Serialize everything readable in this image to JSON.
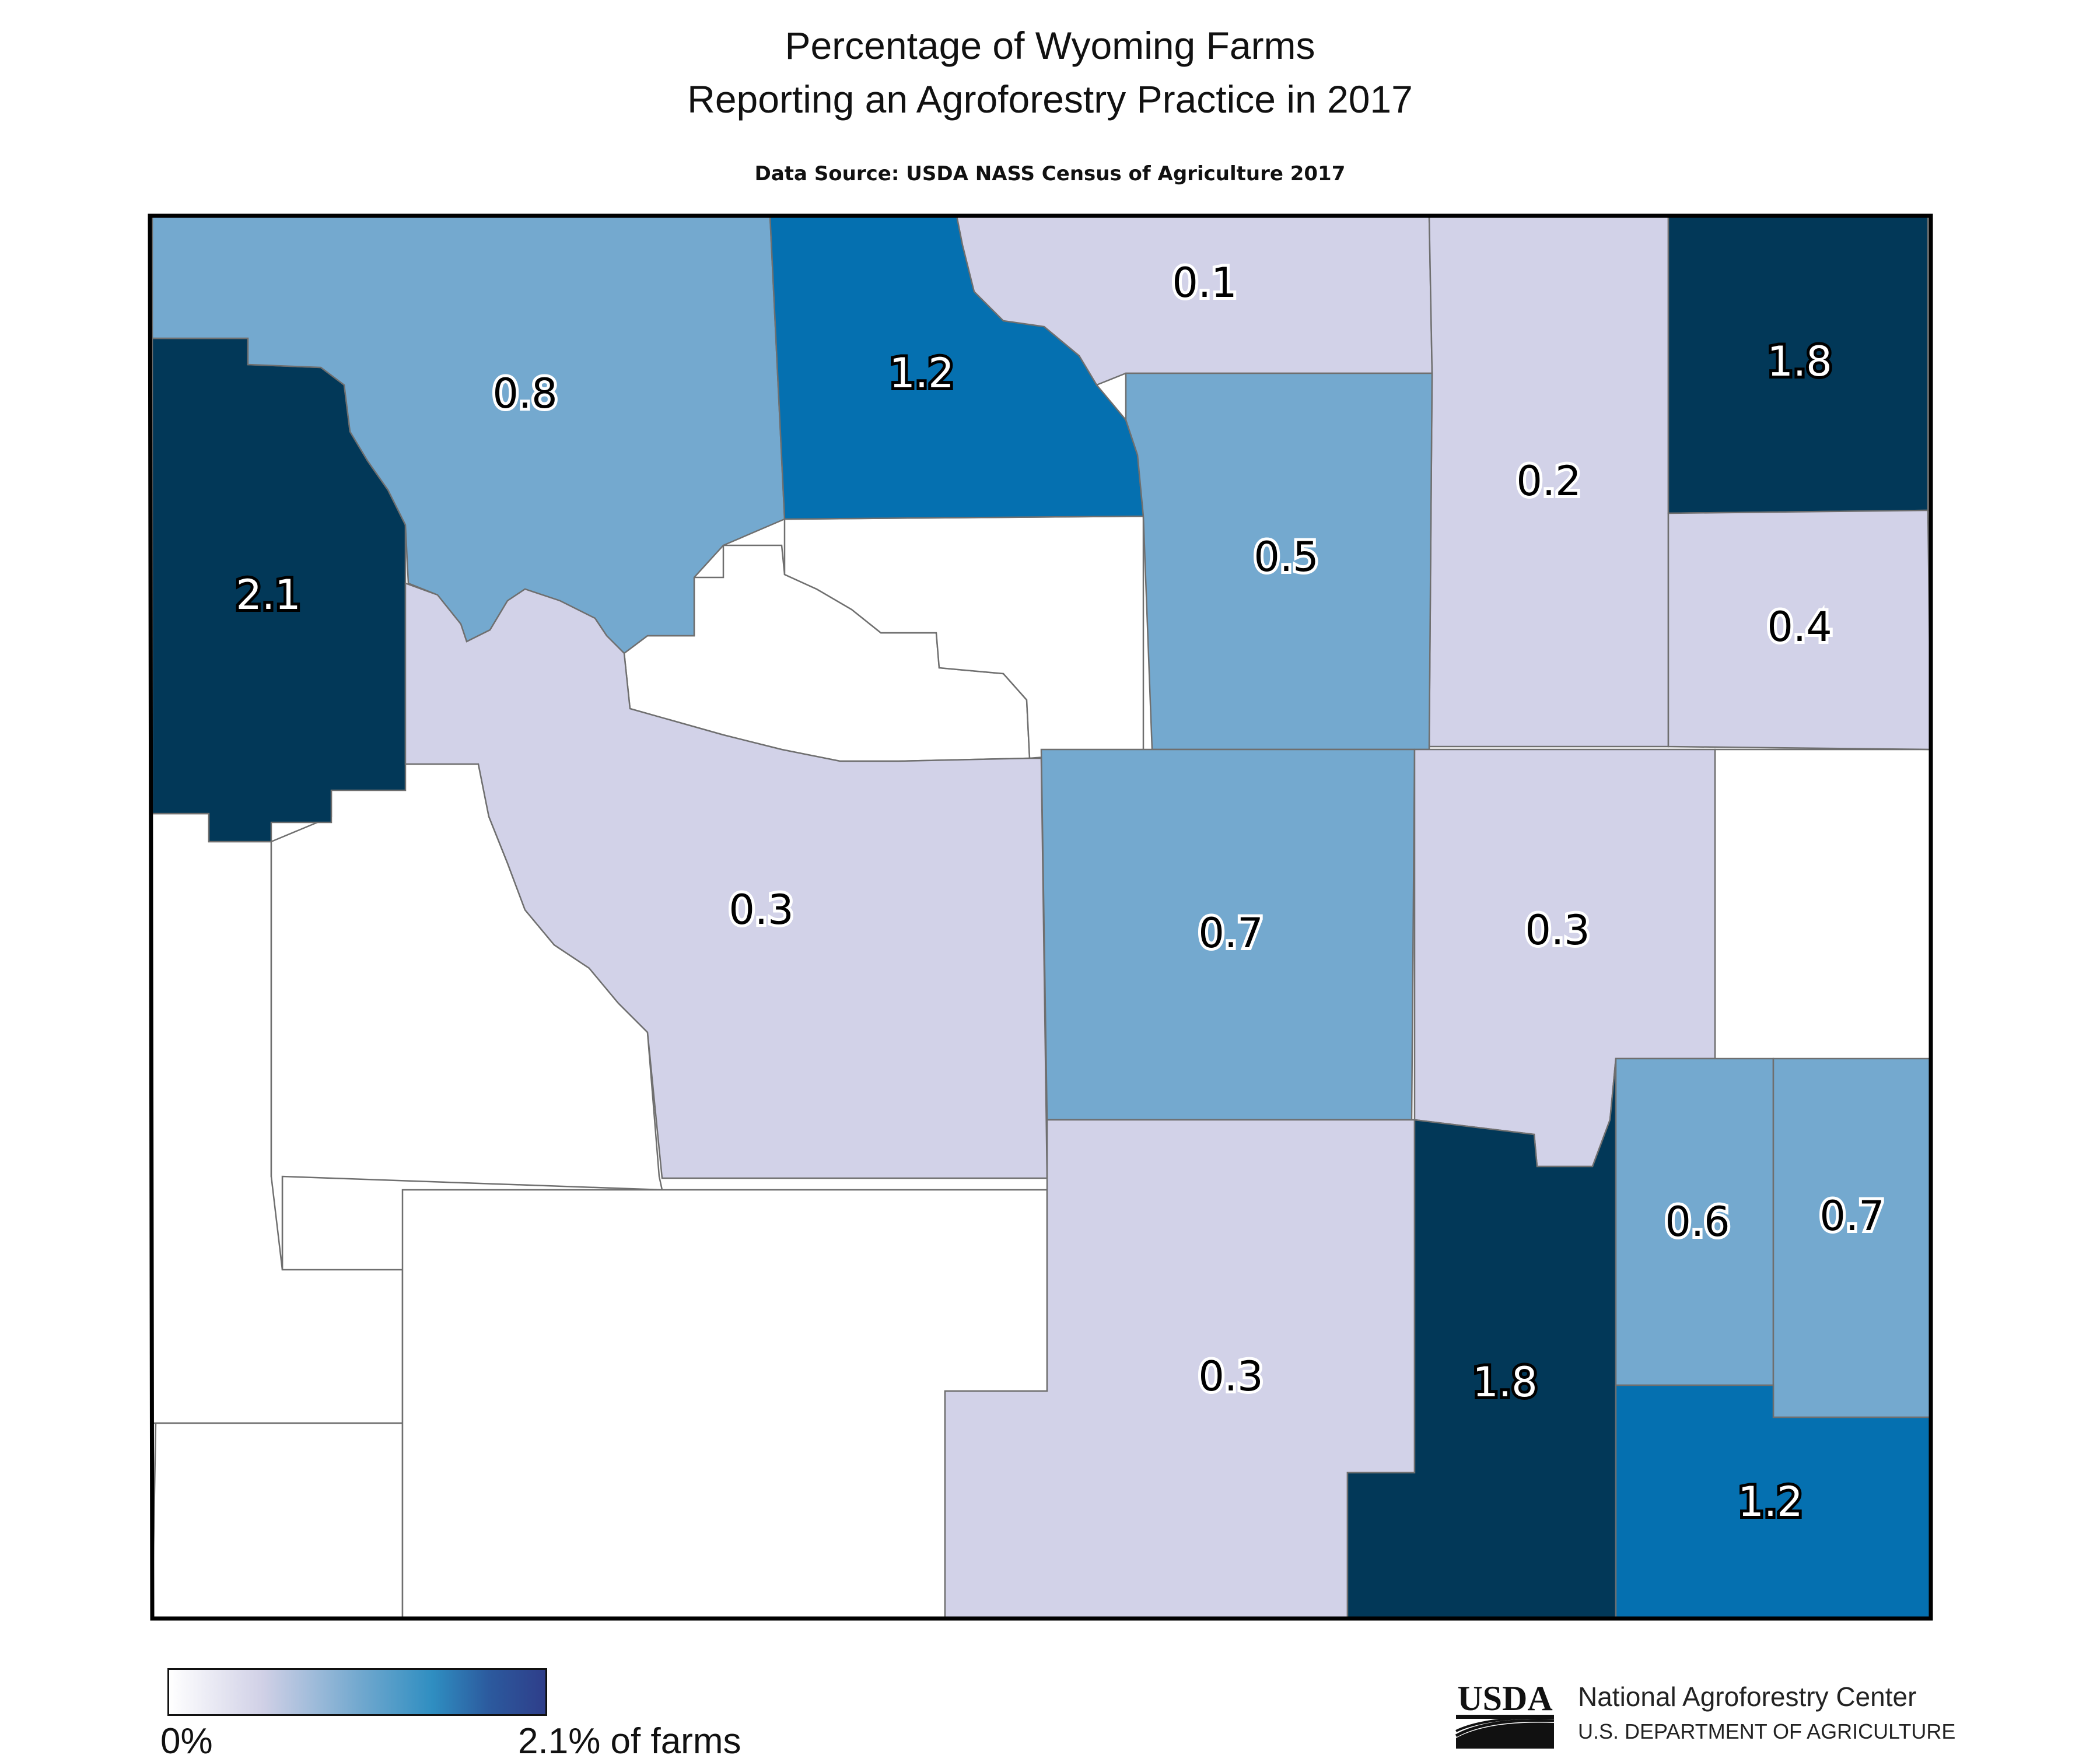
{
  "title": {
    "line1": "Percentage of Wyoming Farms",
    "line2": "Reporting an Agroforestry Practice in 2017"
  },
  "source": "Data Source: USDA NASS Census of Agriculture 2017",
  "legend": {
    "min_label": "0%",
    "max_label": "2.1% of farms",
    "colors": [
      "#ffffff",
      "#d2d2e8",
      "#74a9cf",
      "#2f8ec1",
      "#2e3e8a"
    ]
  },
  "colors": {
    "no_data": "#ffffff",
    "very_low": "#d2d2e8",
    "medium": "#74a9cf",
    "high": "#0570b0",
    "very_high": "#023858"
  },
  "counties": [
    {
      "id": "park",
      "value": "2.1",
      "tier": "very_high"
    },
    {
      "id": "big-horn",
      "value": "0.8",
      "tier": "medium"
    },
    {
      "id": "sheridan",
      "value": "1.2",
      "tier": "high"
    },
    {
      "id": "campbell-north",
      "value": "0.1",
      "tier": "very_low"
    },
    {
      "id": "crook-west",
      "value": "0.2",
      "tier": "very_low"
    },
    {
      "id": "crook",
      "value": "1.8",
      "tier": "very_high"
    },
    {
      "id": "johnson",
      "value": "0.5",
      "tier": "medium"
    },
    {
      "id": "weston",
      "value": "0.4",
      "tier": "very_low"
    },
    {
      "id": "fremont",
      "value": "0.3",
      "tier": "very_low"
    },
    {
      "id": "natrona",
      "value": "0.7",
      "tier": "medium"
    },
    {
      "id": "converse",
      "value": "0.3",
      "tier": "very_low"
    },
    {
      "id": "carbon",
      "value": "0.3",
      "tier": "very_low"
    },
    {
      "id": "albany",
      "value": "1.8",
      "tier": "very_high"
    },
    {
      "id": "platte",
      "value": "0.6",
      "tier": "medium"
    },
    {
      "id": "goshen",
      "value": "0.7",
      "tier": "medium"
    },
    {
      "id": "laramie",
      "value": "1.2",
      "tier": "high"
    },
    {
      "id": "washakie",
      "value": "",
      "tier": "no_data"
    },
    {
      "id": "sublette",
      "value": "",
      "tier": "no_data"
    },
    {
      "id": "lincoln",
      "value": "",
      "tier": "no_data"
    },
    {
      "id": "uinta",
      "value": "",
      "tier": "no_data"
    },
    {
      "id": "sweetwater",
      "value": "",
      "tier": "no_data"
    },
    {
      "id": "niobrara",
      "value": "",
      "tier": "no_data"
    }
  ],
  "logo": {
    "agency": "USDA",
    "center_name": "National Agroforestry Center",
    "department": "U.S. DEPARTMENT OF AGRICULTURE"
  }
}
